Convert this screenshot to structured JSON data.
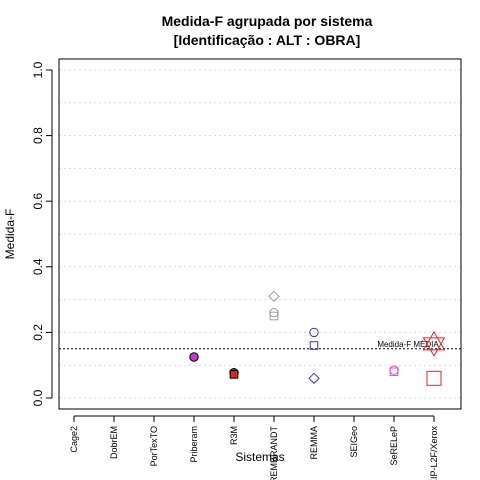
{
  "chart_data": {
    "type": "scatter",
    "title_line1": "Medida-F agrupada por sistema",
    "title_line2": "[Identificação : ALT : OBRA]",
    "xlabel": "Sistemas",
    "ylabel": "Medida-F",
    "ylim": [
      0,
      1
    ],
    "yticks": [
      "0.0",
      "0.2",
      "0.4",
      "0.6",
      "0.8",
      "1.0"
    ],
    "categories": [
      "Cage2",
      "DobrEM",
      "PorTexTO",
      "Priberam",
      "R3M",
      "REMBRANDT",
      "REMMA",
      "SEIGeo",
      "SeRELeP",
      "XIP-L2F/Xerox"
    ],
    "grid": "horizontal dotted",
    "reference_line": {
      "value": 0.15,
      "label": "Medida-F MÉDIA"
    },
    "points": [
      {
        "category": "Priberam",
        "y": 0.125,
        "shape": "circle",
        "color": "#cc33cc",
        "filled": true
      },
      {
        "category": "R3M",
        "y": 0.077,
        "shape": "circle",
        "color": "#dd2222",
        "filled": true
      },
      {
        "category": "R3M",
        "y": 0.072,
        "shape": "square",
        "color": "#dd2222",
        "filled": true
      },
      {
        "category": "REMBRANDT",
        "y": 0.31,
        "shape": "diamond",
        "color": "#999999",
        "filled": false
      },
      {
        "category": "REMBRANDT",
        "y": 0.26,
        "shape": "circle",
        "color": "#999999",
        "filled": false
      },
      {
        "category": "REMBRANDT",
        "y": 0.25,
        "shape": "square",
        "color": "#999999",
        "filled": false
      },
      {
        "category": "REMMA",
        "y": 0.2,
        "shape": "circle",
        "color": "#2233dd",
        "filled": false
      },
      {
        "category": "REMMA",
        "y": 0.16,
        "shape": "square",
        "color": "#2233dd",
        "filled": false
      },
      {
        "category": "REMMA",
        "y": 0.06,
        "shape": "diamond",
        "color": "#2233dd",
        "filled": false
      },
      {
        "category": "SeRELeP",
        "y": 0.085,
        "shape": "circle",
        "color": "#ee44dd",
        "filled": false
      },
      {
        "category": "SeRELeP",
        "y": 0.08,
        "shape": "square",
        "color": "#ee44dd",
        "filled": false
      },
      {
        "category": "XIP-L2F/Xerox",
        "y": 0.165,
        "shape": "star",
        "color": "#ee2222",
        "filled": false
      },
      {
        "category": "XIP-L2F/Xerox",
        "y": 0.06,
        "shape": "square-large",
        "color": "#ee2222",
        "filled": false
      }
    ]
  }
}
